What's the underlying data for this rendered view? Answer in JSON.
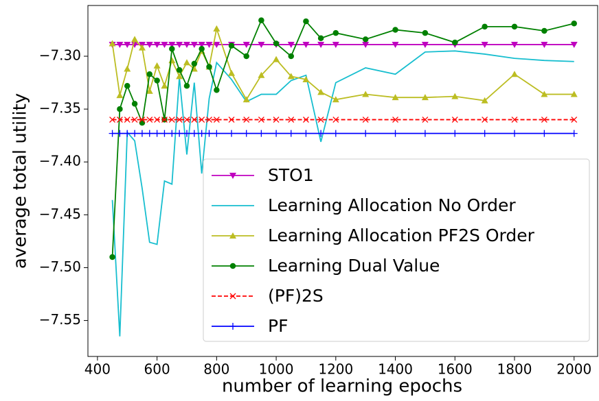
{
  "chart_data": {
    "type": "line",
    "xlabel": "number of learning epochs",
    "ylabel": "average total utility",
    "x": [
      450,
      475,
      500,
      525,
      550,
      575,
      600,
      625,
      650,
      675,
      700,
      725,
      750,
      775,
      800,
      850,
      900,
      950,
      1000,
      1050,
      1100,
      1150,
      1200,
      1300,
      1400,
      1500,
      1600,
      1700,
      1800,
      1900,
      2000
    ],
    "xlim": [
      368,
      2079
    ],
    "ylim": [
      -7.584,
      -7.252
    ],
    "xticks": [
      400,
      600,
      800,
      1000,
      1200,
      1400,
      1600,
      1800,
      2000
    ],
    "yticks": [
      {
        "value": -7.3,
        "label": "−7.30"
      },
      {
        "value": -7.35,
        "label": "−7.35"
      },
      {
        "value": -7.4,
        "label": "−7.40"
      },
      {
        "value": -7.45,
        "label": "−7.45"
      },
      {
        "value": -7.5,
        "label": "−7.50"
      },
      {
        "value": -7.55,
        "label": "−7.55"
      }
    ],
    "legend": "lower right",
    "series": [
      {
        "name": "STO1",
        "color": "#bf00bf",
        "marker": "triangle-down",
        "linestyle": "solid",
        "values": [
          -7.289,
          -7.289,
          -7.289,
          -7.289,
          -7.289,
          -7.289,
          -7.289,
          -7.289,
          -7.289,
          -7.289,
          -7.289,
          -7.289,
          -7.289,
          -7.289,
          -7.289,
          -7.289,
          -7.289,
          -7.289,
          -7.289,
          -7.289,
          -7.289,
          -7.289,
          -7.289,
          -7.289,
          -7.289,
          -7.289,
          -7.289,
          -7.289,
          -7.289,
          -7.289,
          -7.289
        ]
      },
      {
        "name": "Learning Allocation No Order",
        "color": "#17becf",
        "marker": "none",
        "linestyle": "solid",
        "values": [
          -7.436,
          -7.565,
          -7.372,
          -7.38,
          -7.425,
          -7.476,
          -7.478,
          -7.418,
          -7.421,
          -7.32,
          -7.393,
          -7.325,
          -7.411,
          -7.34,
          -7.306,
          -7.322,
          -7.343,
          -7.336,
          -7.336,
          -7.323,
          -7.318,
          -7.381,
          -7.325,
          -7.311,
          -7.317,
          -7.296,
          -7.295,
          -7.298,
          -7.302,
          -7.304,
          -7.305
        ]
      },
      {
        "name": "Learning Allocation PF2S Order",
        "color": "#bcbd22",
        "marker": "triangle-up",
        "linestyle": "solid",
        "values": [
          -7.288,
          -7.337,
          -7.312,
          -7.284,
          -7.292,
          -7.333,
          -7.309,
          -7.328,
          -7.304,
          -7.319,
          -7.306,
          -7.312,
          -7.295,
          -7.31,
          -7.274,
          -7.316,
          -7.341,
          -7.318,
          -7.303,
          -7.319,
          -7.322,
          -7.334,
          -7.341,
          -7.336,
          -7.339,
          -7.339,
          -7.338,
          -7.342,
          -7.317,
          -7.336,
          -7.336
        ]
      },
      {
        "name": "Learning Dual Value",
        "color": "#008000",
        "marker": "circle",
        "linestyle": "solid",
        "values": [
          -7.49,
          -7.35,
          -7.328,
          -7.345,
          -7.363,
          -7.317,
          -7.323,
          -7.36,
          -7.293,
          -7.313,
          -7.328,
          -7.307,
          -7.293,
          -7.31,
          -7.332,
          -7.29,
          -7.3,
          -7.266,
          -7.288,
          -7.3,
          -7.267,
          -7.283,
          -7.278,
          -7.284,
          -7.275,
          -7.278,
          -7.287,
          -7.272,
          -7.272,
          -7.276,
          -7.269
        ]
      },
      {
        "name": "(PF)2S",
        "color": "#ff0000",
        "marker": "x",
        "linestyle": "dashed",
        "values": [
          -7.36,
          -7.36,
          -7.36,
          -7.36,
          -7.36,
          -7.36,
          -7.36,
          -7.36,
          -7.36,
          -7.36,
          -7.36,
          -7.36,
          -7.36,
          -7.36,
          -7.36,
          -7.36,
          -7.36,
          -7.36,
          -7.36,
          -7.36,
          -7.36,
          -7.36,
          -7.36,
          -7.36,
          -7.36,
          -7.36,
          -7.36,
          -7.36,
          -7.36,
          -7.36,
          -7.36
        ]
      },
      {
        "name": "PF",
        "color": "#0000ff",
        "marker": "plus",
        "linestyle": "solid",
        "values": [
          -7.373,
          -7.373,
          -7.373,
          -7.373,
          -7.373,
          -7.373,
          -7.373,
          -7.373,
          -7.373,
          -7.373,
          -7.373,
          -7.373,
          -7.373,
          -7.373,
          -7.373,
          -7.373,
          -7.373,
          -7.373,
          -7.373,
          -7.373,
          -7.373,
          -7.373,
          -7.373,
          -7.373,
          -7.373,
          -7.373,
          -7.373,
          -7.373,
          -7.373,
          -7.373,
          -7.373
        ]
      }
    ]
  }
}
